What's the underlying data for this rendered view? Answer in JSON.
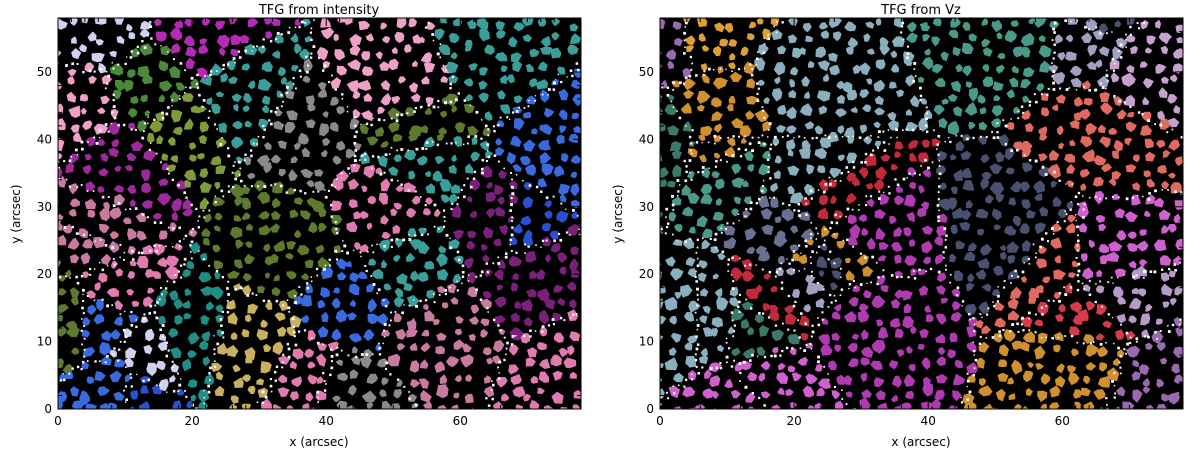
{
  "chart_data": [
    {
      "type": "heatmap",
      "title": "TFG from intensity",
      "xlabel": "x (arcsec)",
      "ylabel": "y (arcsec)",
      "xlim": [
        0,
        78
      ],
      "ylim": [
        0,
        58
      ],
      "xticks": [
        0,
        20,
        40,
        60
      ],
      "yticks": [
        0,
        10,
        20,
        30,
        40,
        50
      ],
      "palette": [
        "#7f9c3a",
        "#5e7a2e",
        "#8ea84a",
        "#2bb3a6",
        "#1f8f86",
        "#3a9e9a",
        "#9c2a9c",
        "#b52ab5",
        "#7a1f7a",
        "#2a4fd0",
        "#3a6ae0",
        "#e07ab0",
        "#f0a0c8",
        "#c87aa0",
        "#8a8a8a",
        "#c8b060",
        "#4a8a3a",
        "#d0d0f0"
      ],
      "background": "#000000",
      "boundary_color": "#ffffff"
    },
    {
      "type": "heatmap",
      "title": "TFG from Vz",
      "xlabel": "x (arcsec)",
      "ylabel": "y (arcsec)",
      "xlim": [
        0,
        78
      ],
      "ylim": [
        0,
        58
      ],
      "xticks": [
        0,
        20,
        40,
        60
      ],
      "yticks": [
        0,
        10,
        20,
        30,
        40,
        50
      ],
      "palette": [
        "#d83a4a",
        "#e05060",
        "#c02a3a",
        "#e0a030",
        "#d09030",
        "#a0a0c0",
        "#6a7090",
        "#4a5070",
        "#b03ab0",
        "#d060d0",
        "#9a6ab0",
        "#b89ac8",
        "#4a9a8a",
        "#3a7a6a",
        "#2a3ad0",
        "#e06a60",
        "#8ab0c0",
        "#c8a0d0"
      ],
      "background": "#000000",
      "boundary_color": "#ffffff"
    }
  ]
}
